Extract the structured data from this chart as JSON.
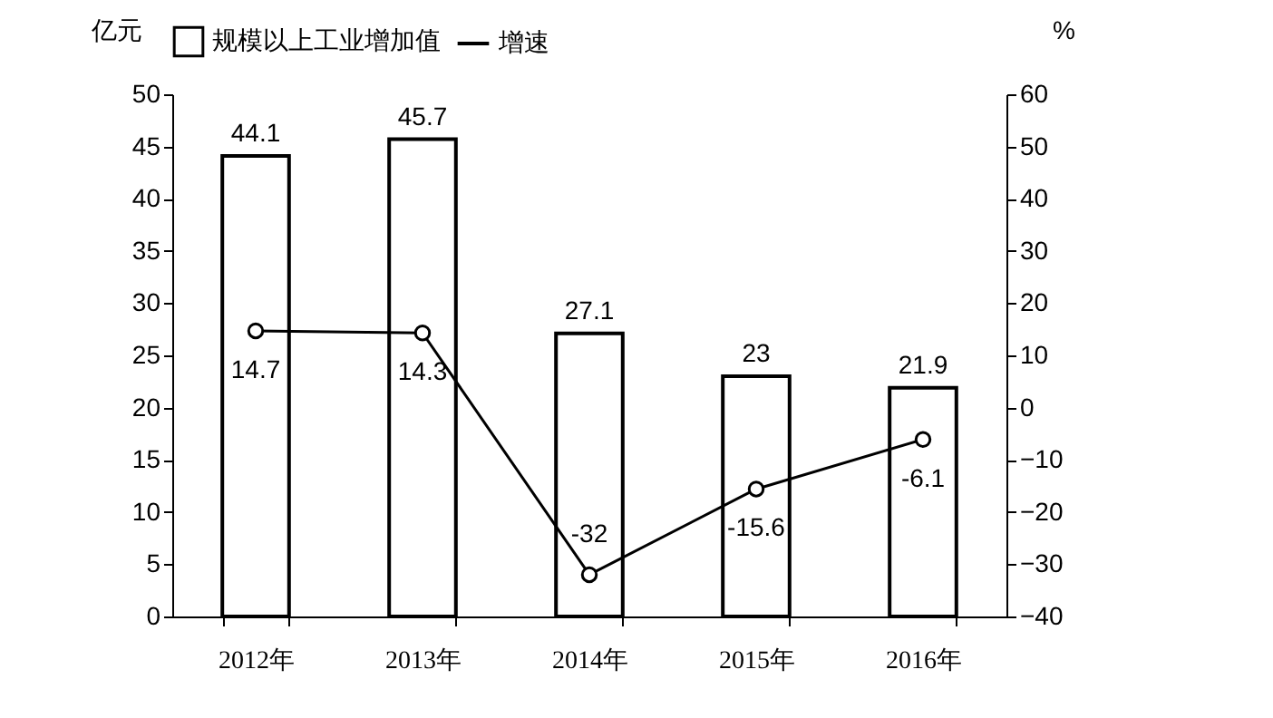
{
  "chart_data": {
    "type": "bar",
    "categories": [
      "2012年",
      "2013年",
      "2014年",
      "2015年",
      "2016年"
    ],
    "ylabel": "亿元",
    "y2label": "%",
    "ylim": [
      0,
      50
    ],
    "yticks": [
      0,
      5,
      10,
      15,
      20,
      25,
      30,
      35,
      40,
      45,
      50
    ],
    "y2lim": [
      -40,
      60
    ],
    "y2ticks": [
      -40,
      -30,
      -20,
      -10,
      0,
      10,
      20,
      30,
      40,
      50,
      60
    ],
    "series": [
      {
        "name": "规模以上工业增加值",
        "color": "#ffffff",
        "values": [
          44.1,
          45.7,
          27.1,
          23,
          21.9
        ]
      },
      {
        "name": "增速",
        "type": "line",
        "axis": "y2",
        "color": "#000000",
        "marker": "circle",
        "values": [
          14.7,
          14.3,
          -32,
          -15.6,
          -6.1
        ]
      }
    ],
    "data_labels": true,
    "grid": false,
    "legend": "top"
  }
}
